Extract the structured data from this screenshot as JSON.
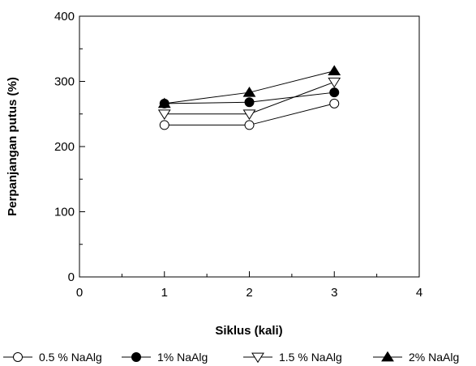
{
  "chart_data": {
    "type": "line",
    "xlabel": "Siklus (kali)",
    "ylabel": "Perpanjangan putus (%)",
    "xlim": [
      0,
      4
    ],
    "ylim": [
      0,
      400
    ],
    "xticks": [
      0,
      1,
      2,
      3,
      4
    ],
    "yticks": [
      0,
      100,
      200,
      300,
      400
    ],
    "grid": false,
    "legend_position": "bottom",
    "x": [
      1,
      2,
      3
    ],
    "series": [
      {
        "name": "0.5 % NaAlg",
        "values": [
          233,
          233,
          266
        ],
        "marker": "circle-open",
        "color": "#000000"
      },
      {
        "name": "1% NaAlg",
        "values": [
          266,
          268,
          283
        ],
        "marker": "circle-filled",
        "color": "#000000"
      },
      {
        "name": "1.5 % NaAlg",
        "values": [
          250,
          250,
          299
        ],
        "marker": "triangle-down-open",
        "color": "#000000"
      },
      {
        "name": "2% NaAlg",
        "values": [
          266,
          283,
          316
        ],
        "marker": "triangle-up-filled",
        "color": "#000000"
      }
    ]
  }
}
